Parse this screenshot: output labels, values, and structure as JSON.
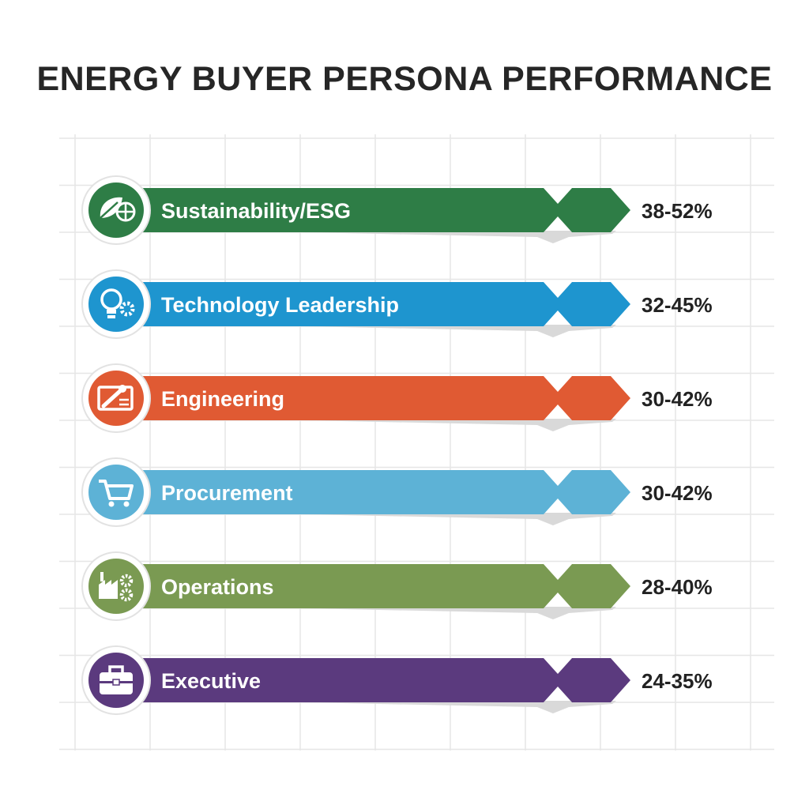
{
  "chart_data": {
    "type": "bar",
    "orientation": "horizontal",
    "title": "ENERGY BUYER PERSONA PERFORMANCE",
    "categories": [
      "Sustainability/ESG",
      "Technology Leadership",
      "Engineering",
      "Procurement",
      "Operations",
      "Executive"
    ],
    "ranges": [
      [
        38,
        52
      ],
      [
        32,
        45
      ],
      [
        30,
        42
      ],
      [
        30,
        42
      ],
      [
        28,
        40
      ],
      [
        24,
        35
      ]
    ],
    "value_labels": [
      "38-52%",
      "32-45%",
      "30-42%",
      "30-42%",
      "28-40%",
      "24-35%"
    ],
    "colors": [
      "#2e7d46",
      "#1e95cf",
      "#e05a33",
      "#5db2d6",
      "#7a9a52",
      "#5b3a7e"
    ],
    "icons": [
      "leaf-globe-icon",
      "lightbulb-gear-icon",
      "wrench-blueprint-icon",
      "shopping-cart-icon",
      "factory-gears-icon",
      "briefcase-icon"
    ],
    "grid": true,
    "legend": "none"
  }
}
